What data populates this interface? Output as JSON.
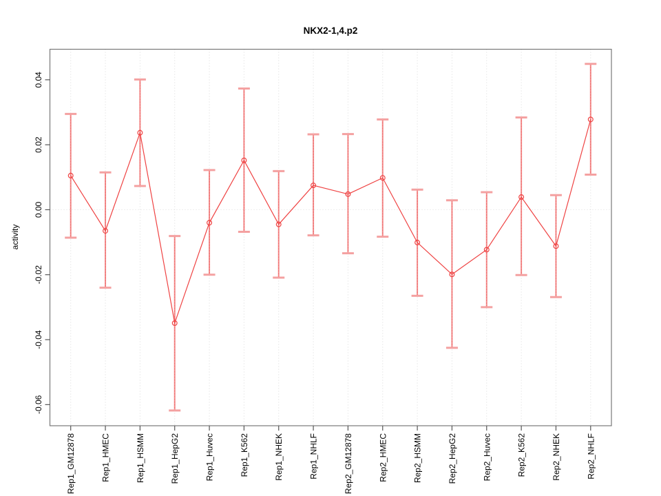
{
  "figure": {
    "background_color": "#ffffff"
  },
  "chart_data": {
    "type": "line",
    "subtype": "points-with-error-bars",
    "title": "NKX2-1,4.p2",
    "xlabel": "",
    "ylabel": "activity",
    "categories": [
      "Rep1_GM12878",
      "Rep1_HMEC",
      "Rep1_HSMM",
      "Rep1_HepG2",
      "Rep1_Huvec",
      "Rep1_K562",
      "Rep1_NHEK",
      "Rep1_NHLF",
      "Rep2_GM12878",
      "Rep2_HMEC",
      "Rep2_HSMM",
      "Rep2_HepG2",
      "Rep2_Huvec",
      "Rep2_K562",
      "Rep2_NHEK",
      "Rep2_NHLF"
    ],
    "series": [
      {
        "name": "activity",
        "values": [
          0.0105,
          -0.0065,
          0.0237,
          -0.0349,
          -0.004,
          0.0152,
          -0.0045,
          0.0075,
          0.0048,
          0.0098,
          -0.0101,
          -0.0199,
          -0.0123,
          0.0039,
          -0.0112,
          0.0278
        ],
        "lower": [
          -0.0086,
          -0.024,
          0.0073,
          -0.0618,
          -0.02,
          -0.0068,
          -0.0209,
          -0.0079,
          -0.0134,
          -0.0083,
          -0.0265,
          -0.0425,
          -0.03,
          -0.0201,
          -0.0269,
          0.0108
        ],
        "upper": [
          0.0295,
          0.0115,
          0.0401,
          -0.0081,
          0.0122,
          0.0373,
          0.0119,
          0.0232,
          0.0233,
          0.0278,
          0.0062,
          0.0029,
          0.0054,
          0.0284,
          0.0045,
          0.0449
        ]
      }
    ],
    "yticks": [
      0.04,
      0.02,
      0.0,
      -0.02,
      -0.04,
      -0.06
    ],
    "ytick_labels": [
      "0.04",
      "0.02",
      "0.00",
      "-0.02",
      "-0.04",
      "-0.06"
    ],
    "ylim": [
      -0.0665,
      0.0494
    ],
    "xlim": [
      0.4,
      16.6
    ],
    "grid": "vertical dotted gridline at each category, dotted horizontal line at y=0",
    "legend": "none",
    "marker": "open-circle",
    "colors": {
      "point": "#ef4242",
      "line": "#ef4242",
      "error_bar_stem": "#f28b8b",
      "error_bar_cap": "#f4a1a1",
      "gridline": "#d9d9d9",
      "zero_line": "#dcdcdc",
      "box": "#777777",
      "tick": "#555555",
      "text": "#000000"
    }
  }
}
